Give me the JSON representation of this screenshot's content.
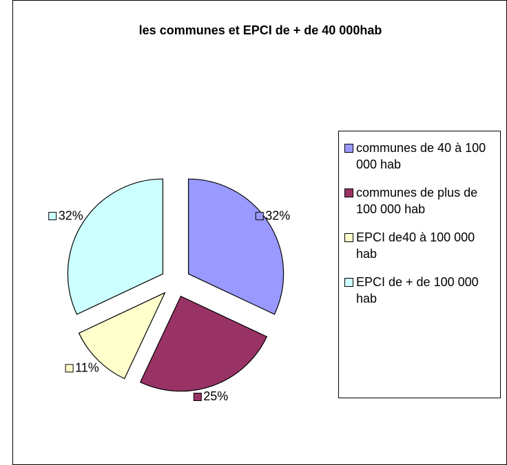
{
  "chart_data": {
    "type": "pie",
    "title": "les communes et EPCI de + de 40 000hab",
    "categories": [
      "communes de 40 à 100 000 hab",
      "communes de plus de 100 000 hab",
      "EPCI de40 à 100 000 hab",
      "EPCI de + de 100 000 hab"
    ],
    "values": [
      32,
      25,
      11,
      32
    ],
    "value_labels": [
      "32%",
      "25%",
      "11%",
      "32%"
    ],
    "colors": [
      "#9999ff",
      "#993366",
      "#ffffcc",
      "#ccffff"
    ],
    "legend": "right"
  }
}
